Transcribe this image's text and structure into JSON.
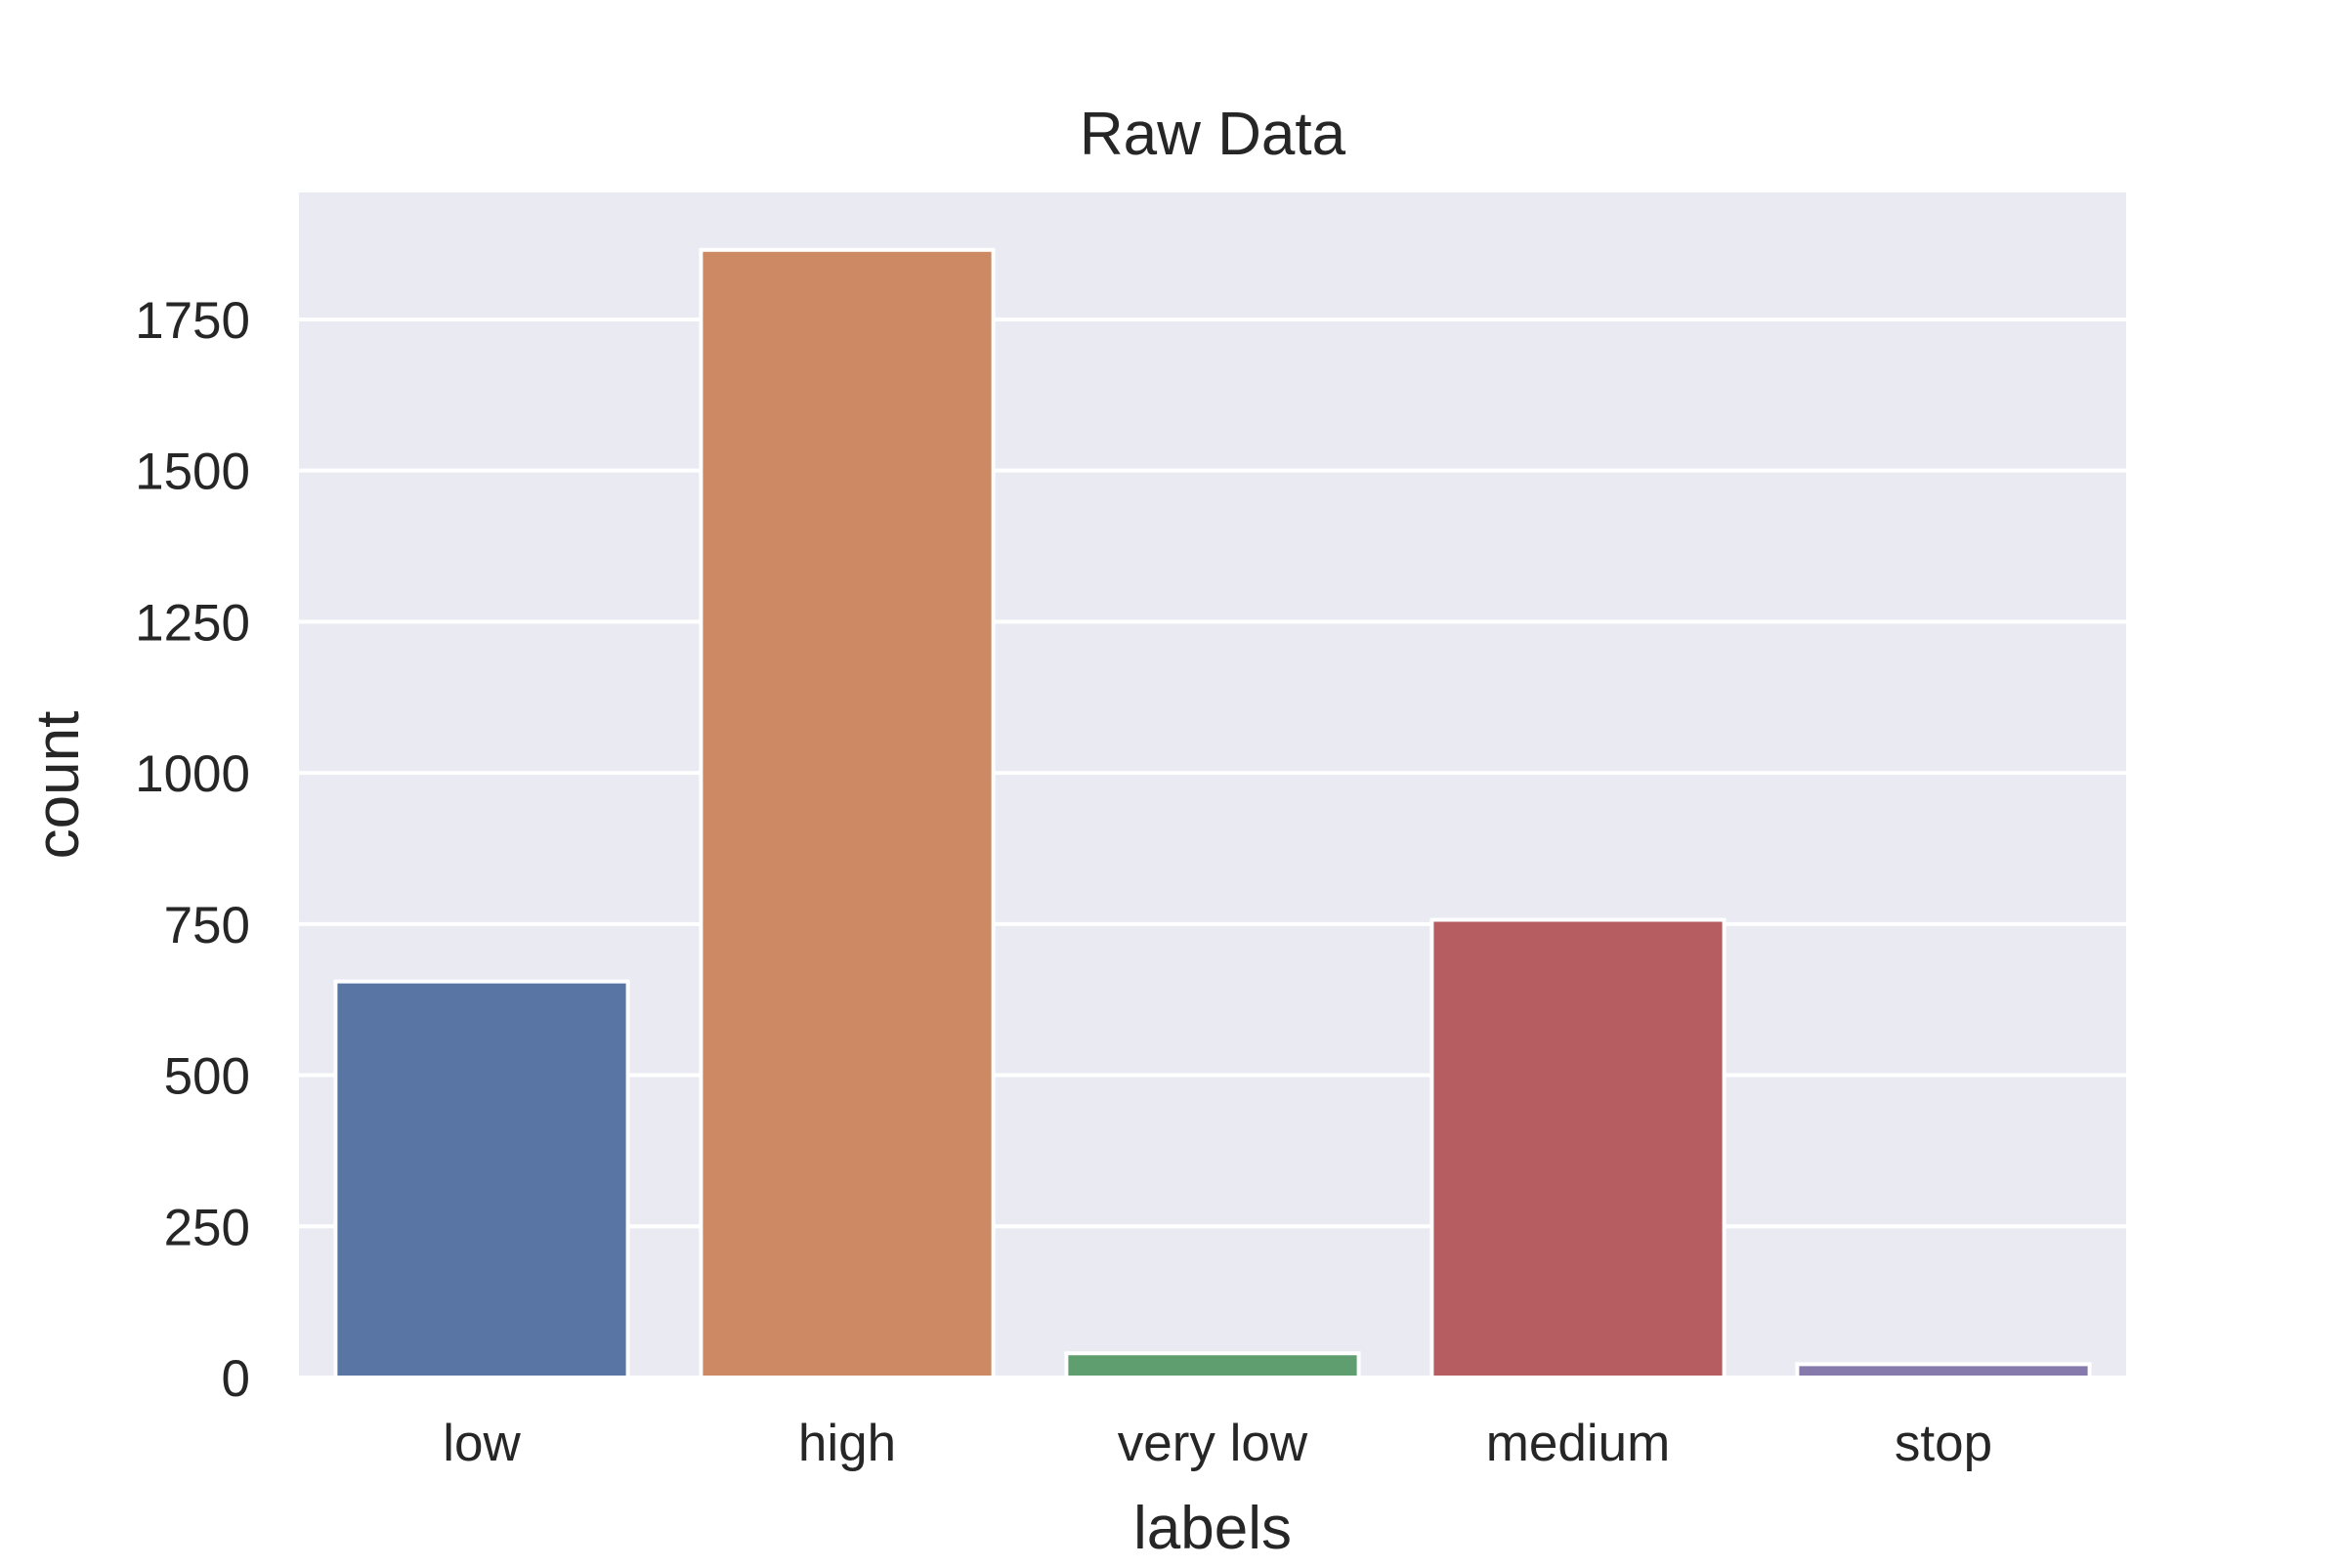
{
  "chart_data": {
    "type": "bar",
    "title": "Raw Data",
    "xlabel": "labels",
    "ylabel": "count",
    "categories": [
      "low",
      "high",
      "very low",
      "medium",
      "stop"
    ],
    "values": [
      655,
      1865,
      40,
      757,
      22
    ],
    "ylim": [
      0,
      1960
    ],
    "yticks": [
      0,
      250,
      500,
      750,
      1000,
      1250,
      1500,
      1750
    ],
    "grid": true,
    "legend": "none",
    "colors": [
      "#5875a4",
      "#cc8963",
      "#5f9e6e",
      "#b55d60",
      "#857aab"
    ],
    "background_color": "#eaeaf2",
    "grid_color": "#ffffff"
  }
}
